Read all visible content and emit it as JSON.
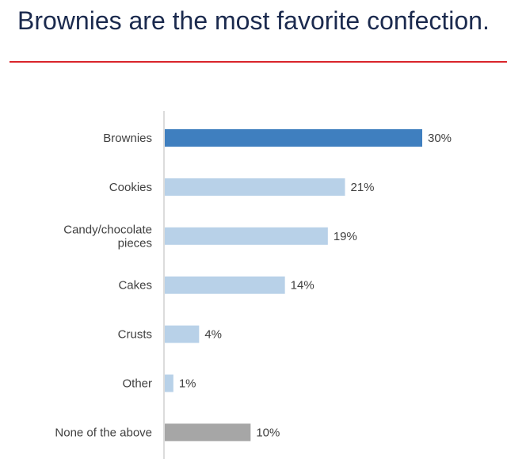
{
  "title": "Brownies are the most favorite confection.",
  "colors": {
    "title": "#1b2a4e",
    "rule": "#d9252b",
    "highlight": "#3f7fbf",
    "bar": "#b8d1e8",
    "none_bar": "#a6a6a6",
    "axis": "#d0d0d0",
    "label": "#404040"
  },
  "chart_data": {
    "type": "bar",
    "orientation": "horizontal",
    "categories": [
      "Brownies",
      "Cookies",
      "Candy/chocolate pieces",
      "Cakes",
      "Crusts",
      "Other",
      "None of the above"
    ],
    "category_lines": [
      [
        "Brownies"
      ],
      [
        "Cookies"
      ],
      [
        "Candy/chocolate",
        "pieces"
      ],
      [
        "Cakes"
      ],
      [
        "Crusts"
      ],
      [
        "Other"
      ],
      [
        "None of the above"
      ]
    ],
    "values": [
      30,
      21,
      19,
      14,
      4,
      1,
      10
    ],
    "value_labels": [
      "30%",
      "21%",
      "19%",
      "14%",
      "4%",
      "1%",
      "10%"
    ],
    "bar_colors": [
      "#3f7fbf",
      "#b8d1e8",
      "#b8d1e8",
      "#b8d1e8",
      "#b8d1e8",
      "#b8d1e8",
      "#a6a6a6"
    ],
    "xlim": [
      0,
      30
    ],
    "grid": false,
    "legend": "none"
  }
}
